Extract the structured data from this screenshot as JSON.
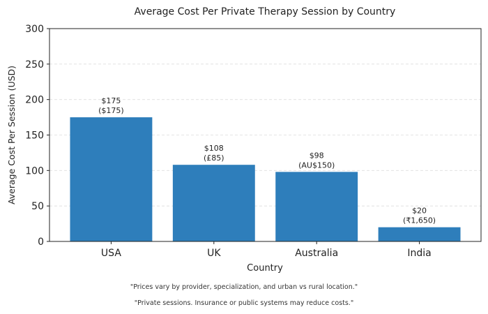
{
  "chart_data": {
    "type": "bar",
    "title": "Average Cost Per Private Therapy Session by Country",
    "xlabel": "Country",
    "ylabel": "Average Cost Per Session (USD)",
    "categories": [
      "USA",
      "UK",
      "Australia",
      "India"
    ],
    "values": [
      175,
      108,
      98,
      20
    ],
    "data_labels": [
      [
        "$175",
        "($175)"
      ],
      [
        "$108",
        "(£85)"
      ],
      [
        "$98",
        "(AU$150)"
      ],
      [
        "$20",
        "(₹1,650)"
      ]
    ],
    "ylim": [
      0,
      300
    ],
    "yticks": [
      0,
      50,
      100,
      150,
      200,
      250,
      300
    ],
    "grid": "y, dashed",
    "bar_color": "#2e7ebb",
    "legend": "none"
  },
  "notes": [
    "\"Prices vary by provider, specialization, and urban vs rural location.\"",
    "\"Private sessions. Insurance or public systems may reduce costs.\""
  ]
}
